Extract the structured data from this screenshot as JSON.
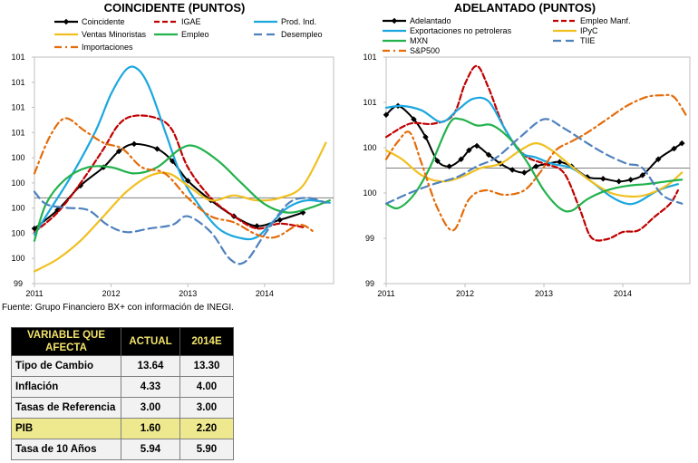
{
  "left": {
    "title": "COINCIDENTE (PUNTOS)",
    "y_ticks": [
      "99",
      "100",
      "100",
      "100",
      "100",
      "100",
      "101",
      "101",
      "101",
      "101"
    ],
    "x_ticks": [
      "2011",
      "2012",
      "2013",
      "2014"
    ]
  },
  "right": {
    "title": "ADELANTADO (PUNTOS)",
    "y_ticks": [
      "99",
      "99",
      "100",
      "100",
      "101",
      "101"
    ],
    "x_ticks": [
      "2011",
      "2012",
      "2013",
      "2014"
    ]
  },
  "source": "Fuente: Grupo Financiero BX+ con información de INEGI.",
  "table": {
    "headers": [
      "VARIABLE QUE AFECTA",
      "ACTUAL",
      "2014E"
    ],
    "rows": [
      {
        "label": "Tipo de Cambio",
        "actual": "13.64",
        "est": "13.30",
        "highlight": false
      },
      {
        "label": "Inflación",
        "actual": "4.33",
        "est": "4.00",
        "highlight": false
      },
      {
        "label": "Tasas de Referencia",
        "actual": "3.00",
        "est": "3.00",
        "highlight": false
      },
      {
        "label": "PIB",
        "actual": "1.60",
        "est": "2.20",
        "highlight": true
      },
      {
        "label": "Tasa de 10 Años",
        "actual": "5.94",
        "est": "5.90",
        "highlight": false
      }
    ]
  },
  "chart_data": [
    {
      "type": "line",
      "title": "COINCIDENTE (PUNTOS)",
      "x_domain": [
        2011,
        2014.9
      ],
      "ylim": [
        99.3,
        101.15
      ],
      "reference_line": 100.0,
      "legend_position": "top",
      "series": [
        {
          "name": "Coincidente",
          "color": "#000000",
          "style": "solid-marker",
          "x": [
            2011,
            2011.3,
            2011.6,
            2011.9,
            2012.1,
            2012.3,
            2012.6,
            2012.8,
            2013,
            2013.3,
            2013.6,
            2013.9,
            2014.2,
            2014.5
          ],
          "y": [
            99.75,
            99.9,
            100.1,
            100.25,
            100.38,
            100.44,
            100.4,
            100.3,
            100.14,
            99.98,
            99.85,
            99.77,
            99.82,
            99.88
          ]
        },
        {
          "name": "IGAE",
          "color": "#c00000",
          "style": "dash",
          "x": [
            2011,
            2011.3,
            2011.6,
            2011.9,
            2012.1,
            2012.3,
            2012.6,
            2012.8,
            2013,
            2013.3,
            2013.6,
            2013.9,
            2014.2,
            2014.5
          ],
          "y": [
            99.72,
            99.88,
            100.12,
            100.4,
            100.6,
            100.67,
            100.65,
            100.55,
            100.25,
            100.0,
            99.85,
            99.75,
            99.79,
            99.76
          ]
        },
        {
          "name": "Prod. Ind.",
          "color": "#1aa7df",
          "style": "solid",
          "x": [
            2011,
            2011.2,
            2011.5,
            2011.8,
            2012,
            2012.2,
            2012.35,
            2012.5,
            2012.7,
            2012.9,
            2013.1,
            2013.4,
            2013.7,
            2013.9,
            2014.1,
            2014.3,
            2014.55,
            2014.85
          ],
          "y": [
            99.7,
            99.9,
            100.2,
            100.55,
            100.85,
            101.05,
            101.05,
            100.9,
            100.55,
            100.2,
            99.98,
            99.75,
            99.67,
            99.68,
            99.8,
            99.92,
            99.98,
            99.96
          ]
        },
        {
          "name": "Ventas Minoristas",
          "color": "#f0c020",
          "style": "solid",
          "x": [
            2011,
            2011.3,
            2011.6,
            2011.9,
            2012.2,
            2012.5,
            2012.75,
            2013,
            2013.3,
            2013.6,
            2013.9,
            2014.2,
            2014.5,
            2014.8
          ],
          "y": [
            99.4,
            99.5,
            99.65,
            99.85,
            100.05,
            100.18,
            100.2,
            100.1,
            99.98,
            100.02,
            99.98,
            100.0,
            100.1,
            100.45
          ]
        },
        {
          "name": "Empleo",
          "color": "#22b24c",
          "style": "solid",
          "x": [
            2011,
            2011.15,
            2011.4,
            2011.7,
            2012,
            2012.3,
            2012.6,
            2012.9,
            2013.1,
            2013.4,
            2013.7,
            2014,
            2014.3,
            2014.6,
            2014.85
          ],
          "y": [
            99.65,
            99.95,
            100.15,
            100.25,
            100.25,
            100.2,
            100.25,
            100.4,
            100.42,
            100.3,
            100.12,
            99.95,
            99.88,
            99.92,
            99.98
          ]
        },
        {
          "name": "Desempleo",
          "color": "#4f81bd",
          "style": "longdash",
          "x": [
            2011,
            2011.15,
            2011.4,
            2011.7,
            2011.95,
            2012.2,
            2012.5,
            2012.8,
            2013,
            2013.3,
            2013.55,
            2013.75,
            2014,
            2014.3,
            2014.55,
            2014.8
          ],
          "y": [
            100.05,
            99.95,
            99.92,
            99.9,
            99.78,
            99.72,
            99.75,
            99.78,
            99.85,
            99.72,
            99.5,
            99.48,
            99.7,
            99.95,
            100.0,
            99.96
          ]
        },
        {
          "name": "Importaciones",
          "color": "#e46c0a",
          "style": "dashdot",
          "x": [
            2011,
            2011.2,
            2011.4,
            2011.65,
            2011.9,
            2012.15,
            2012.4,
            2012.7,
            2013,
            2013.3,
            2013.6,
            2013.9,
            2014.15,
            2014.45,
            2014.65
          ],
          "y": [
            100.2,
            100.5,
            100.65,
            100.55,
            100.45,
            100.4,
            100.25,
            100.2,
            100.0,
            99.85,
            99.8,
            99.7,
            99.68,
            99.78,
            99.72
          ]
        }
      ]
    },
    {
      "type": "line",
      "title": "ADELANTADO (PUNTOS)",
      "x_domain": [
        2011,
        2014.85
      ],
      "ylim": [
        98.7,
        101.25
      ],
      "reference_line": 100.0,
      "legend_position": "top",
      "series": [
        {
          "name": "Adelantado",
          "color": "#000000",
          "style": "solid-marker",
          "x": [
            2011,
            2011.15,
            2011.35,
            2011.5,
            2011.65,
            2011.8,
            2011.95,
            2012.05,
            2012.15,
            2012.3,
            2012.45,
            2012.6,
            2012.75,
            2012.9,
            2013.05,
            2013.2,
            2013.35,
            2013.55,
            2013.75,
            2013.95,
            2014.1,
            2014.25,
            2014.45,
            2014.65,
            2014.75
          ],
          "y": [
            100.6,
            100.7,
            100.55,
            100.35,
            100.08,
            100.02,
            100.1,
            100.2,
            100.25,
            100.15,
            100.05,
            99.98,
            99.95,
            100.02,
            100.05,
            100.07,
            100.02,
            99.9,
            99.88,
            99.85,
            99.87,
            99.92,
            100.1,
            100.22,
            100.28
          ]
        },
        {
          "name": "Empleo Manf.",
          "color": "#c00000",
          "style": "dash",
          "x": [
            2011,
            2011.3,
            2011.6,
            2011.85,
            2012,
            2012.15,
            2012.3,
            2012.5,
            2012.75,
            2013,
            2013.25,
            2013.45,
            2013.6,
            2013.8,
            2014,
            2014.2,
            2014.4,
            2014.6,
            2014.7
          ],
          "y": [
            100.35,
            100.5,
            100.5,
            100.6,
            100.95,
            101.15,
            100.9,
            100.45,
            100.15,
            100.05,
            99.95,
            99.55,
            99.22,
            99.2,
            99.28,
            99.3,
            99.45,
            99.6,
            99.75
          ]
        },
        {
          "name": "Exportaciones no petroleras",
          "color": "#1aa7df",
          "style": "solid",
          "x": [
            2011,
            2011.2,
            2011.45,
            2011.7,
            2011.9,
            2012.1,
            2012.3,
            2012.5,
            2012.7,
            2012.9,
            2013.1,
            2013.35,
            2013.6,
            2013.85,
            2014.05,
            2014.2,
            2014.45,
            2014.7
          ],
          "y": [
            100.68,
            100.7,
            100.65,
            100.52,
            100.65,
            100.78,
            100.75,
            100.45,
            100.18,
            100.12,
            100.05,
            100.0,
            99.85,
            99.68,
            99.6,
            99.62,
            99.75,
            99.82
          ]
        },
        {
          "name": "IPyC",
          "color": "#f0c020",
          "style": "solid",
          "x": [
            2011,
            2011.2,
            2011.45,
            2011.7,
            2011.95,
            2012.2,
            2012.45,
            2012.7,
            2012.9,
            2013.1,
            2013.35,
            2013.6,
            2013.85,
            2014.1,
            2014.3,
            2014.55,
            2014.75
          ],
          "y": [
            100.2,
            100.1,
            99.92,
            99.85,
            99.9,
            100.0,
            100.05,
            100.2,
            100.28,
            100.2,
            100.02,
            99.85,
            99.72,
            99.68,
            99.7,
            99.8,
            99.95
          ]
        },
        {
          "name": "MXN",
          "color": "#22b24c",
          "style": "solid",
          "x": [
            2011,
            2011.15,
            2011.35,
            2011.55,
            2011.8,
            2011.95,
            2012.15,
            2012.35,
            2012.6,
            2012.8,
            2013,
            2013.2,
            2013.35,
            2013.55,
            2013.8,
            2014.05,
            2014.3,
            2014.55,
            2014.75
          ],
          "y": [
            99.6,
            99.55,
            99.7,
            100.0,
            100.5,
            100.55,
            100.48,
            100.48,
            100.3,
            100.05,
            99.75,
            99.55,
            99.52,
            99.65,
            99.75,
            99.8,
            99.82,
            99.85,
            99.87
          ]
        },
        {
          "name": "TIIE",
          "color": "#4f81bd",
          "style": "longdash",
          "x": [
            2011,
            2011.3,
            2011.6,
            2011.9,
            2012.15,
            2012.4,
            2012.7,
            2013,
            2013.25,
            2013.55,
            2013.8,
            2014.05,
            2014.25,
            2014.5,
            2014.75
          ],
          "y": [
            99.6,
            99.72,
            99.82,
            99.9,
            100.02,
            100.12,
            100.35,
            100.55,
            100.45,
            100.28,
            100.15,
            100.05,
            100.0,
            99.7,
            99.6
          ]
        },
        {
          "name": "S&P500",
          "color": "#e46c0a",
          "style": "dashdot",
          "x": [
            2011,
            2011.15,
            2011.3,
            2011.45,
            2011.65,
            2011.85,
            2012.05,
            2012.25,
            2012.5,
            2012.75,
            2012.95,
            2013.15,
            2013.35,
            2013.55,
            2013.8,
            2014.05,
            2014.3,
            2014.5,
            2014.65,
            2014.8
          ],
          "y": [
            100.1,
            100.3,
            100.4,
            100.05,
            99.55,
            99.3,
            99.65,
            99.75,
            99.7,
            99.75,
            99.95,
            100.2,
            100.3,
            100.4,
            100.55,
            100.7,
            100.8,
            100.82,
            100.8,
            100.6
          ]
        }
      ]
    }
  ]
}
